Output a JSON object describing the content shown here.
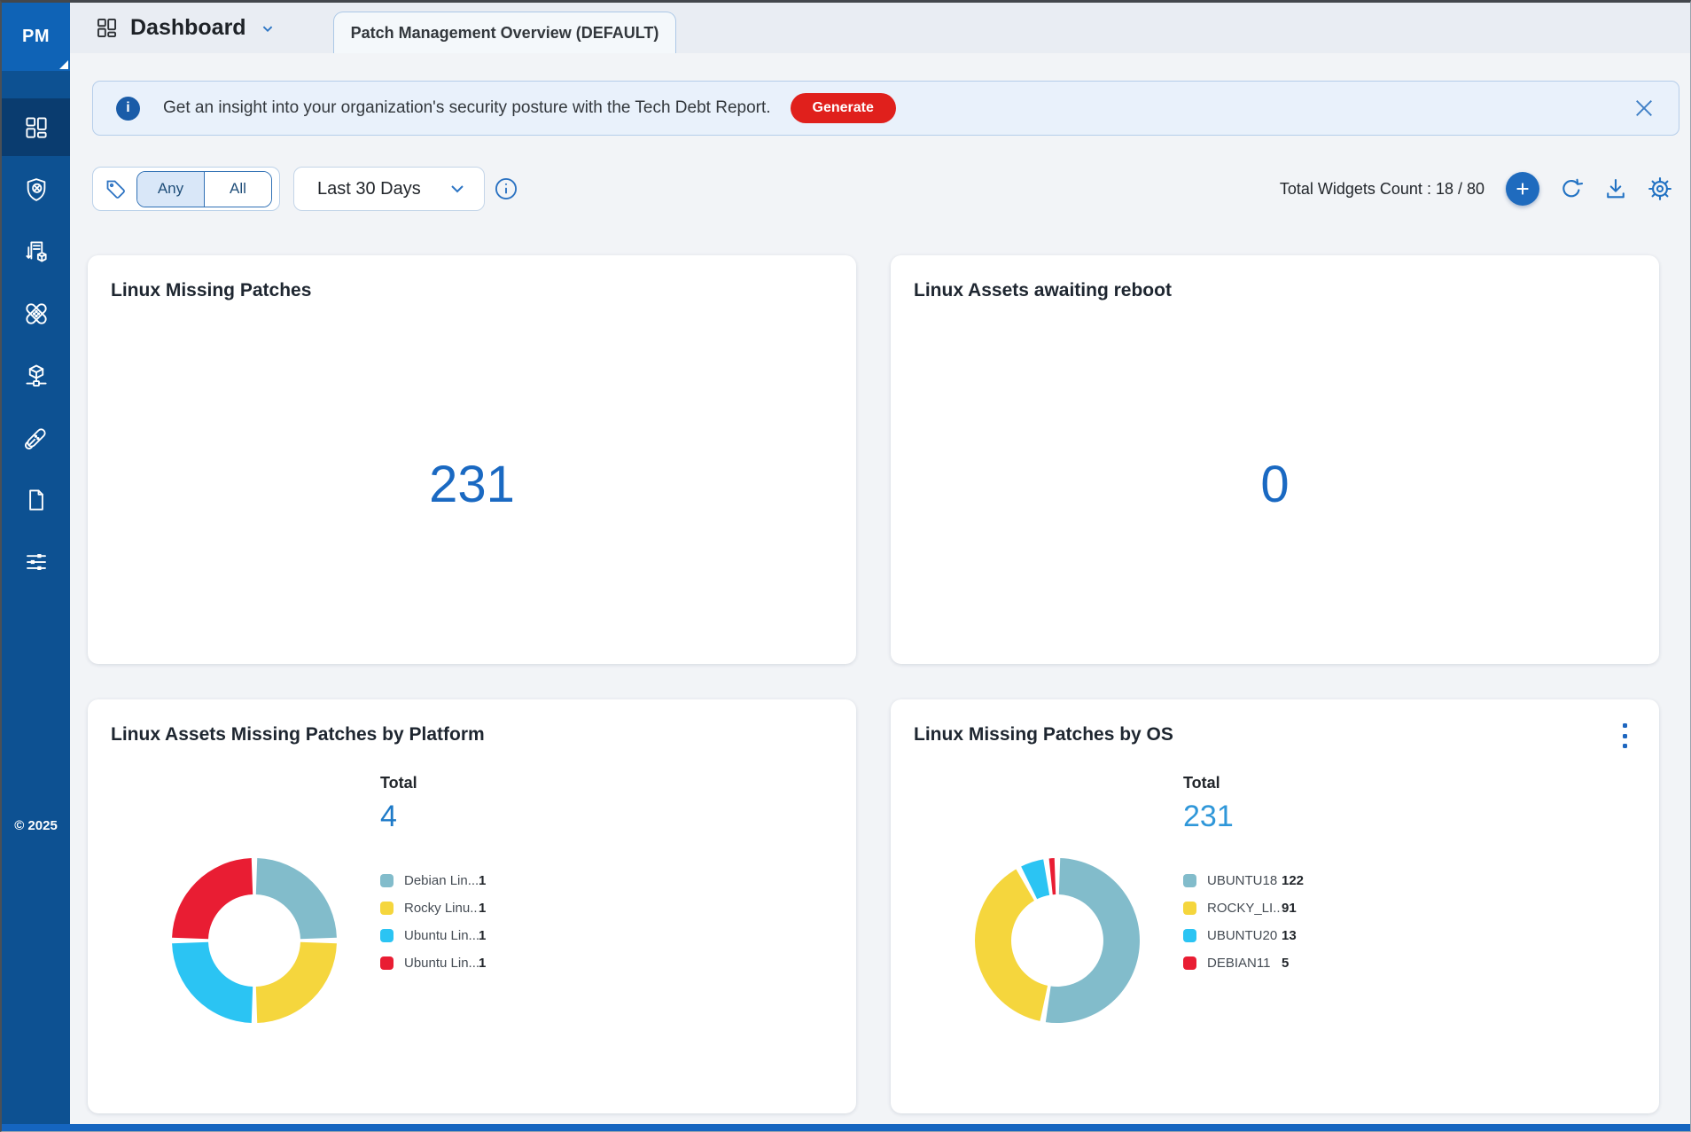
{
  "app": {
    "logo_text": "PM",
    "copyright": "© 2025"
  },
  "sidebar": {
    "icons": [
      "dashboard-grid-icon",
      "shield-scan-icon",
      "job-inventory-icon",
      "patches-icon",
      "deployment-network-icon",
      "remediation-tools-icon",
      "reports-document-icon",
      "configuration-sliders-icon"
    ],
    "active_item": "dashboard-grid-icon"
  },
  "header": {
    "title": "Dashboard",
    "tab_label": "Patch Management Overview (DEFAULT)"
  },
  "banner": {
    "message": "Get an insight into your organization's security posture with the Tech Debt Report.",
    "action_label": "Generate"
  },
  "toolbar": {
    "segments": [
      "Any",
      "All"
    ],
    "selected_segment": "Any",
    "date_filter": "Last 30 Days",
    "widgets_count": "Total Widgets Count : 18 / 80"
  },
  "widgets": [
    {
      "title": "Linux Missing Patches",
      "value": "231"
    },
    {
      "title": "Linux Assets awaiting reboot",
      "value": "0"
    },
    {
      "title": "Linux Assets Missing Patches by Platform"
    },
    {
      "title": "Linux Missing Patches by OS"
    }
  ],
  "chart_data": [
    {
      "type": "pie",
      "subtype": "donut",
      "title": "Linux Assets Missing Patches by Platform",
      "total_label": "Total",
      "total": 4,
      "total_color": "#1e7ac8",
      "legend_position": "right",
      "segments": [
        {
          "label": "Debian Lin...",
          "value": 1,
          "color": "#82bccb"
        },
        {
          "label": "Rocky Linu...",
          "value": 1,
          "color": "#f5d63d"
        },
        {
          "label": "Ubuntu Lin...",
          "value": 1,
          "color": "#2bc4f3"
        },
        {
          "label": "Ubuntu Lin...",
          "value": 1,
          "color": "#e91d33"
        }
      ]
    },
    {
      "type": "pie",
      "subtype": "donut",
      "title": "Linux Missing Patches by OS",
      "total_label": "Total",
      "total": 231,
      "total_color": "#2f97d9",
      "legend_position": "right",
      "segments": [
        {
          "label": "UBUNTU18",
          "value": 122,
          "color": "#82bccb"
        },
        {
          "label": "ROCKY_LI...",
          "value": 91,
          "color": "#f5d63d"
        },
        {
          "label": "UBUNTU20",
          "value": 13,
          "color": "#2bc4f3"
        },
        {
          "label": "DEBIAN11",
          "value": 5,
          "color": "#e91d33"
        }
      ]
    }
  ],
  "colors": {
    "accent_blue": "#1a69c2",
    "brand_red": "#e0201c",
    "sidebar_blue": "#0d5192",
    "sidebar_active": "#0a3c6f",
    "banner_bg": "#e9f1fb"
  }
}
